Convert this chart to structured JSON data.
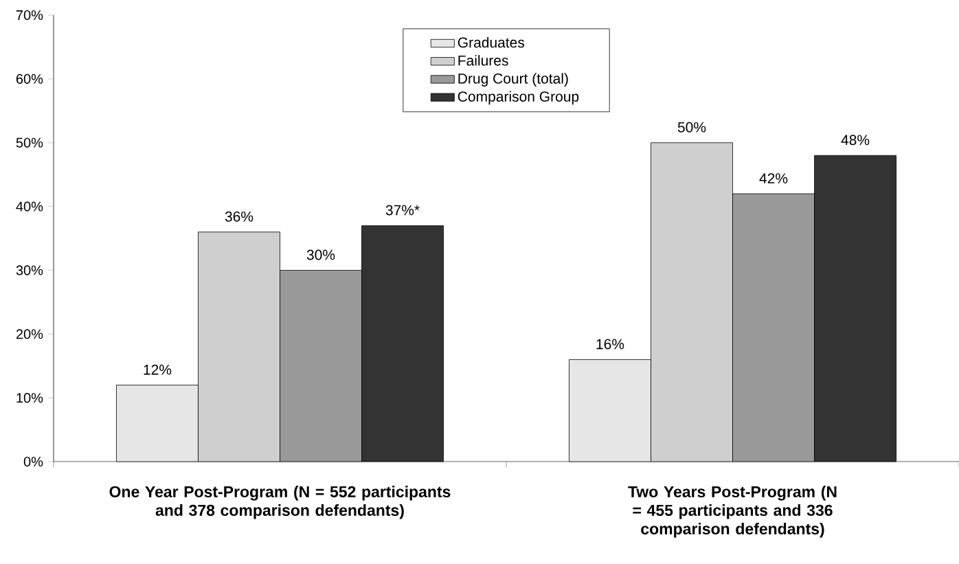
{
  "chart_data": {
    "type": "bar",
    "categories": [
      "One Year Post-Program (N = 552 participants and 378 comparison defendants)",
      "Two Years Post-Program (N = 455 participants and 336 comparison defendants)"
    ],
    "series": [
      {
        "name": "Graduates",
        "color": "#e6e6e6",
        "values": [
          12,
          16
        ],
        "value_labels": [
          "12%",
          "16%"
        ]
      },
      {
        "name": "Failures",
        "color": "#cfcfcf",
        "values": [
          36,
          50
        ],
        "value_labels": [
          "36%",
          "50%"
        ]
      },
      {
        "name": "Drug Court (total)",
        "color": "#999999",
        "values": [
          30,
          42
        ],
        "value_labels": [
          "30%",
          "42%"
        ]
      },
      {
        "name": "Comparison Group",
        "color": "#333333",
        "values": [
          37,
          48
        ],
        "value_labels": [
          "37%*",
          "48%"
        ]
      }
    ],
    "ylim": [
      0,
      70
    ],
    "yticks": [
      {
        "value": 0,
        "label": "0%"
      },
      {
        "value": 10,
        "label": "10%"
      },
      {
        "value": 20,
        "label": "20%"
      },
      {
        "value": 30,
        "label": "30%"
      },
      {
        "value": 40,
        "label": "40%"
      },
      {
        "value": 50,
        "label": "50%"
      },
      {
        "value": 60,
        "label": "60%"
      },
      {
        "value": 70,
        "label": "70%"
      }
    ],
    "legend": "top",
    "grid": false
  }
}
